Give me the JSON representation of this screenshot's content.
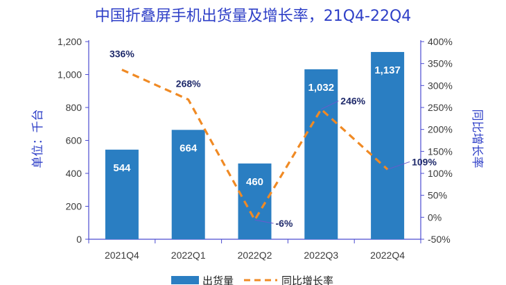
{
  "chart_data": {
    "type": "bar+line",
    "title": "中国折叠屏手机出货量及增长率，21Q4-22Q4",
    "categories": [
      "2021Q4",
      "2022Q1",
      "2022Q2",
      "2022Q3",
      "2022Q4"
    ],
    "bar_series": {
      "name": "出货量",
      "values": [
        544,
        664,
        460,
        1032,
        1137
      ],
      "labels": [
        "544",
        "664",
        "460",
        "1,032",
        "1,137"
      ]
    },
    "line_series": {
      "name": "同比增长率",
      "values": [
        336,
        268,
        -6,
        246,
        109
      ],
      "labels": [
        "336%",
        "268%",
        "-6%",
        "246%",
        "109%"
      ]
    },
    "ylabel_left": "单位：千台",
    "ylabel_right": "同比增长率",
    "ylim_left": [
      0,
      1200
    ],
    "ylim_right": [
      -50,
      400
    ],
    "left_ticks": [
      "0",
      "200",
      "400",
      "600",
      "800",
      "1,000",
      "1,200"
    ],
    "right_ticks": [
      "-50%",
      "0%",
      "50%",
      "100%",
      "150%",
      "200%",
      "250%",
      "300%",
      "350%",
      "400%"
    ],
    "legend": [
      "出货量",
      "同比增长率"
    ],
    "legend_position": "bottom-center",
    "colors": {
      "bar": "#2a7ec2",
      "line": "#f08a24",
      "title": "#2e3fc7",
      "leader": "#6a5acd",
      "axis": "#4a4ad0"
    }
  }
}
